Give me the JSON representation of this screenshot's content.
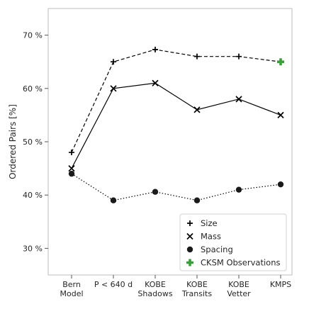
{
  "chart_data": {
    "type": "line",
    "ylabel": "Ordered Pairs [%]",
    "ylim": [
      25,
      75
    ],
    "y_ticks": [
      30,
      40,
      50,
      60,
      70
    ],
    "y_tick_labels": [
      "30 %",
      "40 %",
      "50 %",
      "60 %",
      "70 %"
    ],
    "grid": false,
    "legend_position": "bottom-right",
    "categories": [
      [
        "Bern",
        "Model"
      ],
      [
        "P < 640 d"
      ],
      [
        "KOBE",
        "Shadows"
      ],
      [
        "KOBE",
        "Transits"
      ],
      [
        "KOBE",
        "Vetter"
      ],
      [
        "KMPS"
      ]
    ],
    "series": [
      {
        "name": "Size",
        "marker": "plus",
        "line": "dashed",
        "color": "#000000",
        "values": [
          48,
          65,
          67.3,
          66,
          66,
          65
        ]
      },
      {
        "name": "Mass",
        "marker": "x",
        "line": "solid",
        "color": "#000000",
        "values": [
          45,
          60,
          61,
          56,
          58,
          55
        ]
      },
      {
        "name": "Spacing",
        "marker": "circle",
        "line": "dotted",
        "color": "#000000",
        "values": [
          44,
          39,
          40.6,
          39,
          41,
          42
        ]
      }
    ],
    "observation": {
      "name": "CKSM Observations",
      "marker": "thick-plus",
      "color": "#3a9e3a",
      "category_index": 5,
      "value": 65
    }
  }
}
